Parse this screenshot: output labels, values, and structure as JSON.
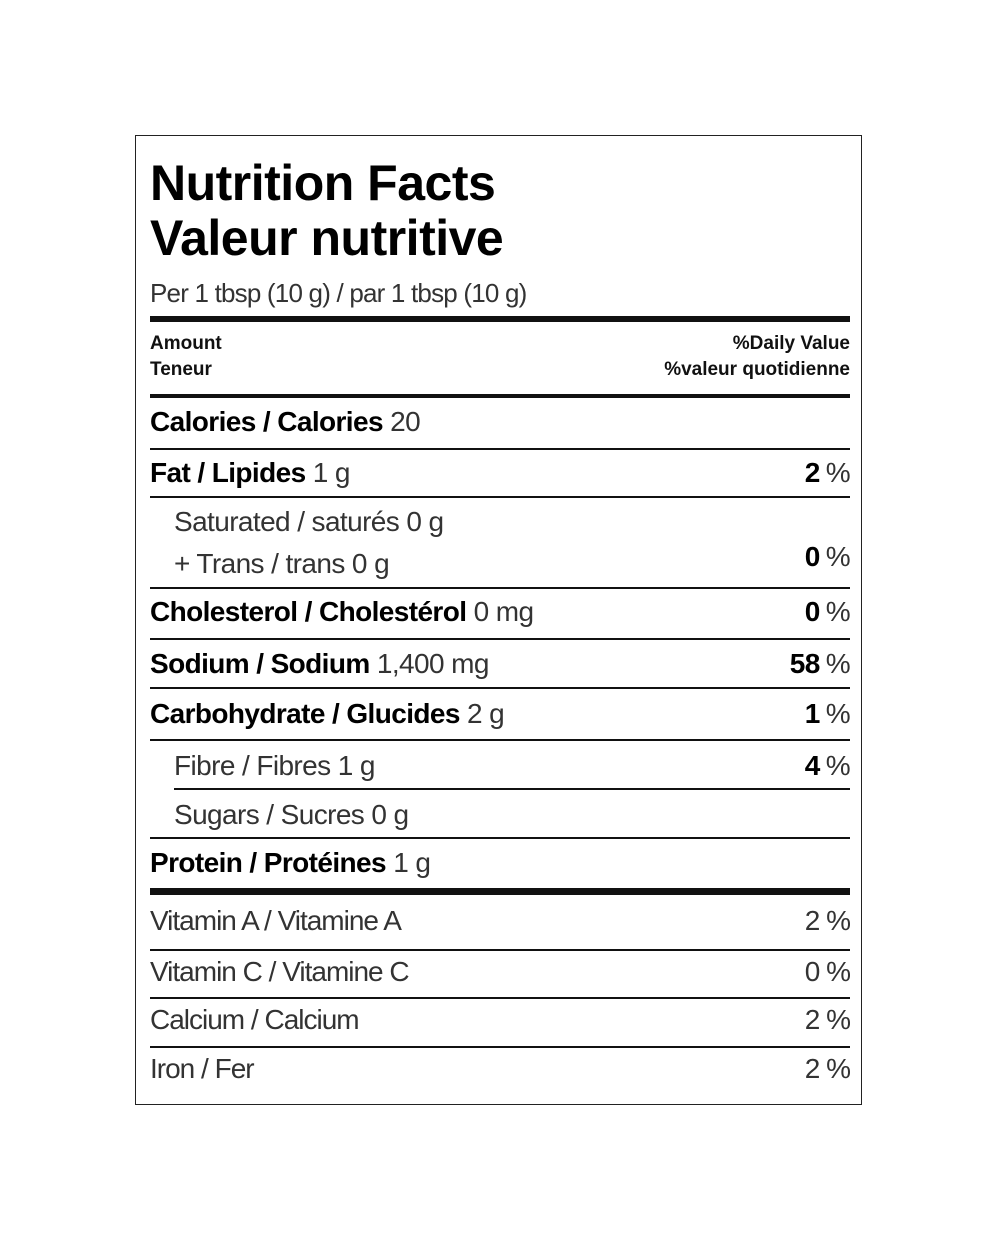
{
  "title_en": "Nutrition Facts",
  "title_fr": "Valeur nutritive",
  "serving": "Per 1 tbsp (10 g) / par 1 tbsp (10 g)",
  "header": {
    "amount": "Amount",
    "teneur": "Teneur",
    "dv": "%Daily Value",
    "vq": "%valeur quotidienne"
  },
  "calories": {
    "label": "Calories / Calories",
    "value": "20"
  },
  "fat": {
    "label": "Fat / Lipides",
    "amount": "1 g",
    "pct": "2",
    "unit": "%"
  },
  "saturated": {
    "label": "Saturated / saturés 0 g"
  },
  "trans": {
    "label": "+ Trans / trans 0 g",
    "pct": "0",
    "unit": "%"
  },
  "cholesterol": {
    "label": "Cholesterol / Cholestérol",
    "amount": "0 mg",
    "pct": "0",
    "unit": "%"
  },
  "sodium": {
    "label": "Sodium / Sodium",
    "amount": "1,400 mg",
    "pct": "58",
    "unit": "%"
  },
  "carbohydrate": {
    "label": "Carbohydrate / Glucides",
    "amount": "2 g",
    "pct": "1",
    "unit": "%"
  },
  "fibre": {
    "label": "Fibre / Fibres 1 g",
    "pct": "4",
    "unit": "%"
  },
  "sugars": {
    "label": "Sugars / Sucres 0 g"
  },
  "protein": {
    "label": "Protein / Protéines",
    "amount": "1 g"
  },
  "vitamins": [
    {
      "label": "Vitamin A / Vitamine A",
      "pct": "2 %"
    },
    {
      "label": "Vitamin C / Vitamine C",
      "pct": "0 %"
    },
    {
      "label": "Calcium / Calcium",
      "pct": "2 %"
    },
    {
      "label": "Iron / Fer",
      "pct": "2 %"
    }
  ]
}
